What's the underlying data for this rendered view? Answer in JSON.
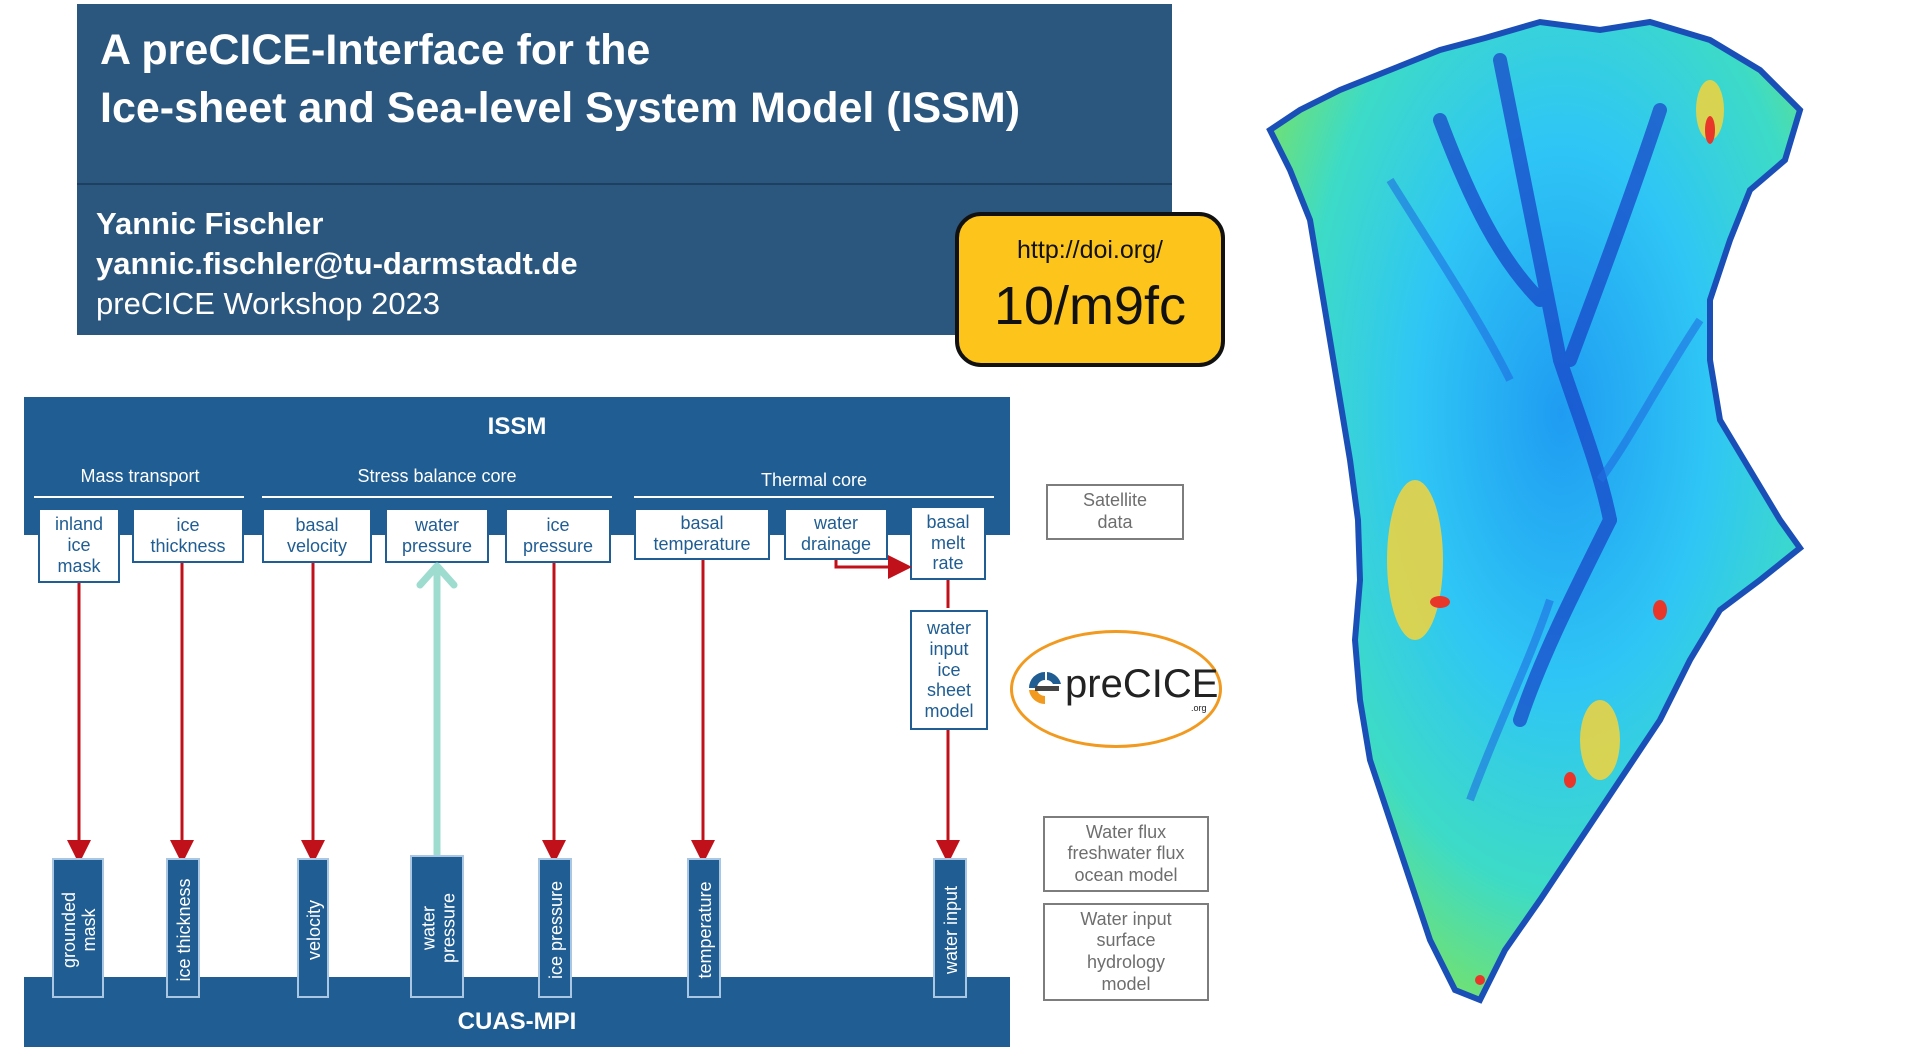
{
  "title": {
    "line1": "A preCICE-Interface for the",
    "line2": "Ice-sheet and Sea-level System Model (ISSM)"
  },
  "author": {
    "name": "Yannic Fischler",
    "email": "yannic.fischler@tu-darmstadt.de",
    "event": "preCICE Workshop 2023"
  },
  "doi": {
    "prefix": "http://doi.org/",
    "code": "10/m9fc"
  },
  "diagram": {
    "top_model": "ISSM",
    "bottom_model": "CUAS-MPI",
    "groups": {
      "mass_transport": "Mass transport",
      "stress_balance": "Stress balance core",
      "thermal": "Thermal core"
    },
    "issm_vars": [
      "inland\nice\nmask",
      "ice\nthickness",
      "basal\nvelocity",
      "water\npressure",
      "ice\npressure",
      "basal\ntemperature",
      "water\ndrainage",
      "basal\nmelt\nrate"
    ],
    "intermediate_box": "water\ninput\nice\nsheet\nmodel",
    "cuas_inputs": [
      "grounded\nmask",
      "ice thickness",
      "velocity",
      "water\npressure",
      "ice pressure",
      "temperature",
      "water input"
    ],
    "external_sources": {
      "satellite": "Satellite\ndata",
      "ocean": "Water flux\nfreshwater flux\nocean model",
      "hydrology": "Water input\nsurface\nhydrology\nmodel"
    },
    "logo": {
      "name": "preCICE",
      "suffix": ".org"
    },
    "colors": {
      "model_blue": "#1f5d92",
      "arrow_red": "#c0101a",
      "arrow_feedback": "#9ddccf",
      "logo_ring": "#f19a1f",
      "doi_yellow": "#fdc51b"
    }
  },
  "map": {
    "icon": "greenland-ice-velocity-map"
  }
}
